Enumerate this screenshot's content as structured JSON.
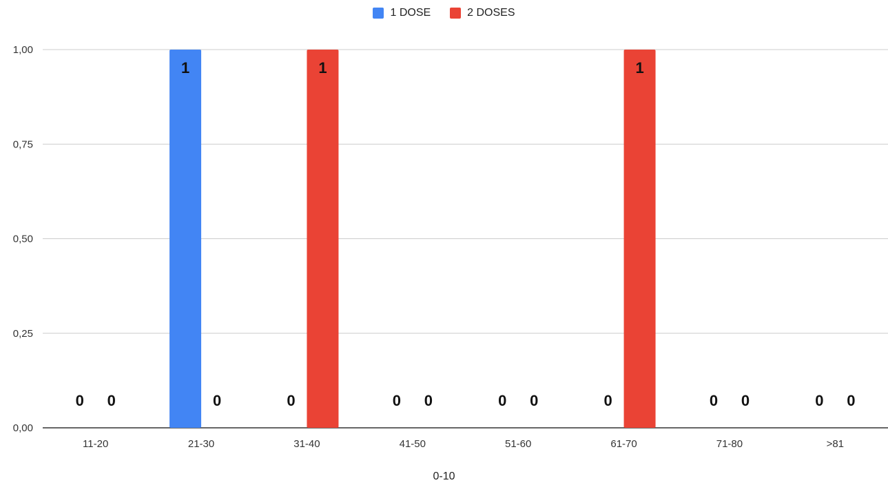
{
  "chart_data": {
    "type": "bar",
    "categories": [
      "11-20",
      "21-30",
      "31-40",
      "41-50",
      "51-60",
      "61-70",
      "71-80",
      ">81"
    ],
    "series": [
      {
        "name": "1 DOSE",
        "color": "#4285F4",
        "values": [
          0,
          1,
          0,
          0,
          0,
          0,
          0,
          0
        ]
      },
      {
        "name": "2 DOSES",
        "color": "#EA4335",
        "values": [
          0,
          0,
          1,
          0,
          0,
          1,
          0,
          0
        ]
      }
    ],
    "y_ticks": [
      "0,00",
      "0,25",
      "0,50",
      "0,75",
      "1,00"
    ],
    "ylim": [
      0,
      1
    ],
    "xlabel": "0-10",
    "ylabel": "",
    "legend_position": "top",
    "grid": true
  }
}
